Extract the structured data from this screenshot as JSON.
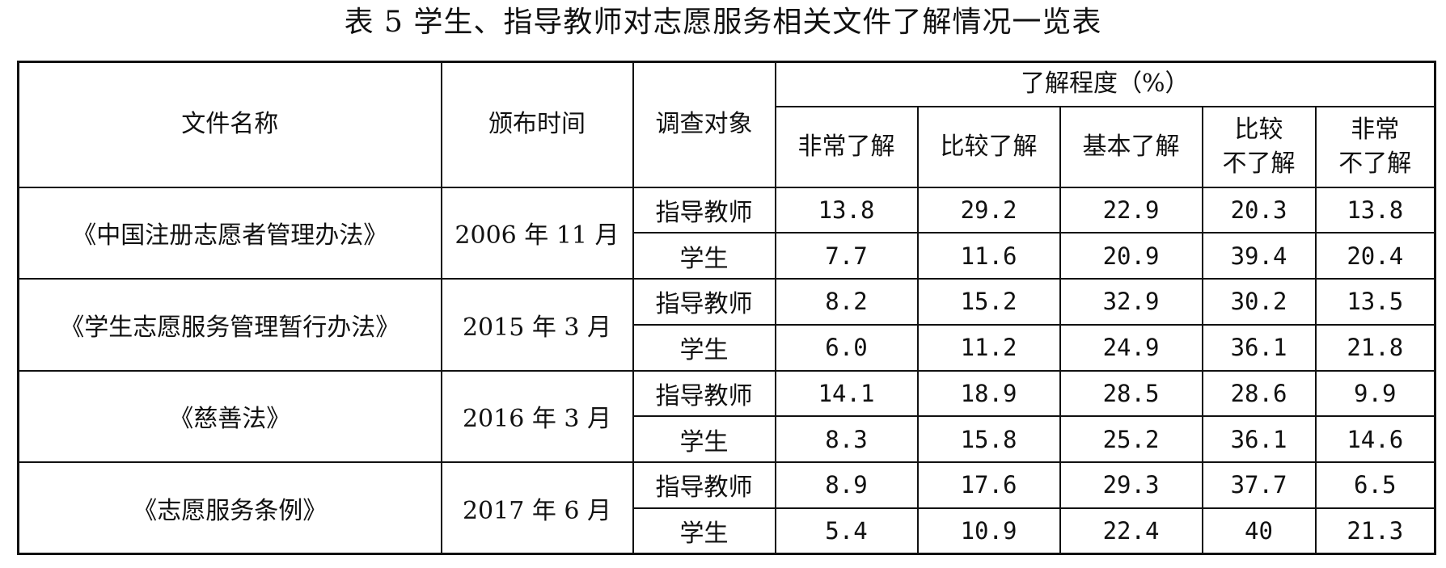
{
  "title": "表 5  学生、指导教师对志愿服务相关文件了解情况一览表",
  "headers": {
    "file_name": "文件名称",
    "issue_date": "颁布时间",
    "respondent": "调查对象",
    "level_group": "了解程度（%）",
    "levels": [
      {
        "line1": "非常了解",
        "line2": ""
      },
      {
        "line1": "比较了解",
        "line2": ""
      },
      {
        "line1": "基本了解",
        "line2": ""
      },
      {
        "line1": "比较",
        "line2": "不了解"
      },
      {
        "line1": "非常",
        "line2": "不了解"
      }
    ]
  },
  "rows": [
    {
      "file": "《中国注册志愿者管理办法》",
      "date": "2006 年 11 月",
      "groups": [
        {
          "respondent": "指导教师",
          "values": [
            "13.8",
            "29.2",
            "22.9",
            "20.3",
            "13.8"
          ]
        },
        {
          "respondent": "学生",
          "values": [
            "7.7",
            "11.6",
            "20.9",
            "39.4",
            "20.4"
          ]
        }
      ]
    },
    {
      "file": "《学生志愿服务管理暂行办法》",
      "date": "2015 年 3 月",
      "groups": [
        {
          "respondent": "指导教师",
          "values": [
            "8.2",
            "15.2",
            "32.9",
            "30.2",
            "13.5"
          ]
        },
        {
          "respondent": "学生",
          "values": [
            "6.0",
            "11.2",
            "24.9",
            "36.1",
            "21.8"
          ]
        }
      ]
    },
    {
      "file": "《慈善法》",
      "date": "2016 年 3 月",
      "groups": [
        {
          "respondent": "指导教师",
          "values": [
            "14.1",
            "18.9",
            "28.5",
            "28.6",
            "9.9"
          ]
        },
        {
          "respondent": "学生",
          "values": [
            "8.3",
            "15.8",
            "25.2",
            "36.1",
            "14.6"
          ]
        }
      ]
    },
    {
      "file": "《志愿服务条例》",
      "date": "2017 年 6 月",
      "groups": [
        {
          "respondent": "指导教师",
          "values": [
            "8.9",
            "17.6",
            "29.3",
            "37.7",
            "6.5"
          ]
        },
        {
          "respondent": "学生",
          "values": [
            "5.4",
            "10.9",
            "22.4",
            "40",
            "21.3"
          ]
        }
      ]
    }
  ]
}
